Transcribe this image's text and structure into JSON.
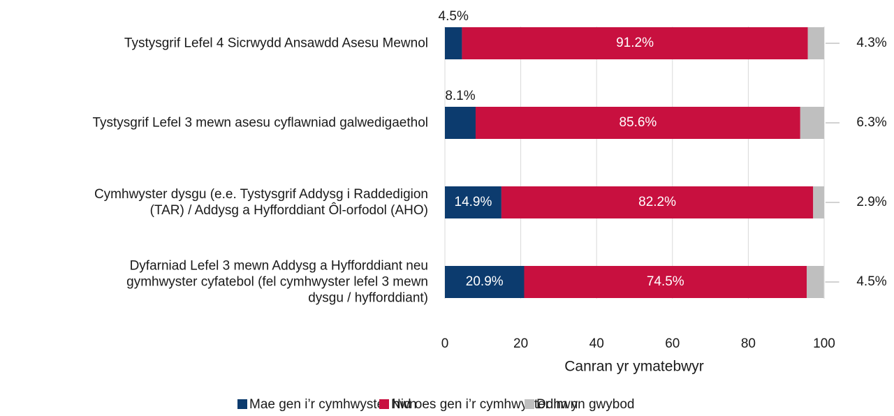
{
  "chart_data": {
    "type": "bar",
    "orientation": "horizontal",
    "stacked": true,
    "categories": [
      "Tystysgrif Lefel 4 Sicrwydd Ansawdd Asesu Mewnol",
      "Tystysgrif Lefel 3 mewn asesu cyflawniad galwedigaethol",
      "Cymhwyster dysgu (e.e. Tystysgrif Addysg i Raddedigion\n(TAR) / Addysg a Hyfforddiant Ôl-orfodol (AHO)",
      "Dyfarniad Lefel 3 mewn Addysg a Hyfforddiant neu\ngymhwyster cyfatebol (fel cymhwyster lefel 3 mewn\ndysgu / hyfforddiant)"
    ],
    "series": [
      {
        "name": "Mae gen i’r cymhwyster hwn",
        "color": "#0c3b6e",
        "values": [
          4.5,
          8.1,
          14.9,
          20.9
        ],
        "value_labels": [
          "4.5%",
          "8.1%",
          "14.9%",
          "20.9%"
        ]
      },
      {
        "name": "Nid oes gen i’r cymhwyster hwn",
        "color": "#c8103f",
        "values": [
          91.2,
          85.6,
          82.2,
          74.5
        ],
        "value_labels": [
          "91.2%",
          "85.6%",
          "82.2%",
          "74.5%"
        ]
      },
      {
        "name": "Ddim yn gwybod",
        "color": "#bfbfbf",
        "values": [
          4.3,
          6.3,
          2.9,
          4.5
        ],
        "value_labels": [
          "4.3%",
          "6.3%",
          "2.9%",
          "4.5%"
        ]
      }
    ],
    "x_label": "Canran yr ymatebwyr",
    "xlim": [
      0,
      100
    ],
    "xticks": [
      0,
      20,
      40,
      60,
      80,
      100
    ],
    "grid": true,
    "legend": "bottom"
  }
}
